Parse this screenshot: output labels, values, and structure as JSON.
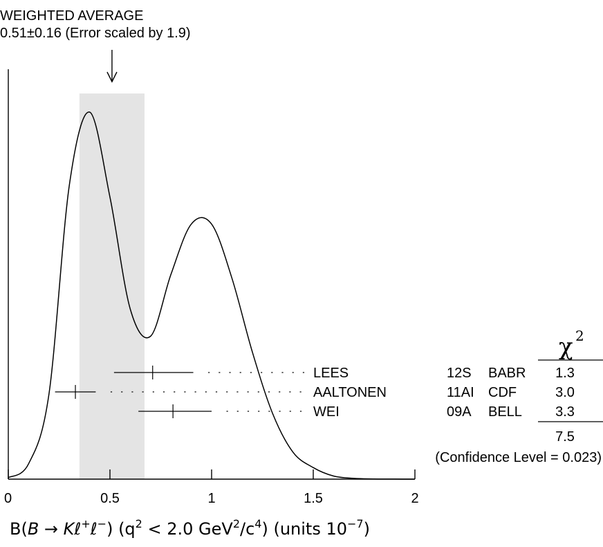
{
  "chart_data": {
    "type": "ideogram",
    "title_line1": "WEIGHTED AVERAGE",
    "title_line2": "0.51±0.16 (Error scaled by 1.9)",
    "weighted_average": {
      "value": 0.51,
      "error": 0.16,
      "scale_factor": 1.9,
      "band": [
        0.35,
        0.67
      ]
    },
    "xlim": [
      0,
      2
    ],
    "ticks": [
      {
        "value": 0,
        "label": "0"
      },
      {
        "value": 0.5,
        "label": "0.5"
      },
      {
        "value": 1,
        "label": "1"
      },
      {
        "value": 1.5,
        "label": "1.5"
      },
      {
        "value": 2,
        "label": "2"
      }
    ],
    "xlabel": {
      "prefix": "B(",
      "B": "B",
      "arrow": " → ",
      "K": "K",
      "ell1": "ℓ",
      "sup_plus": "+",
      "ell2": "ℓ",
      "sup_minus": "−",
      "after_decay": ") (q",
      "sup_q": "2",
      "mid": " < 2.0 GeV",
      "sup_gev": "2",
      "slash_c": "/c",
      "sup_c": "4",
      "units_text": ") (units 10",
      "sup_units": "−7",
      "close": ")"
    },
    "measurements": [
      {
        "author": "LEES",
        "ref": "12S",
        "experiment": "BABR",
        "value": 0.71,
        "err_low": 0.19,
        "err_high": 0.2,
        "chi2": "1.3"
      },
      {
        "author": "AALTONEN",
        "ref": "11AI",
        "experiment": "CDF",
        "value": 0.33,
        "err_low": 0.1,
        "err_high": 0.1,
        "chi2": "3.0"
      },
      {
        "author": "WEI",
        "ref": "09A",
        "experiment": "BELL",
        "value": 0.81,
        "err_low": 0.17,
        "err_high": 0.19,
        "chi2": "3.3"
      }
    ],
    "chi2_header": "χ",
    "chi2_header_sup": "2",
    "chi2_total": "7.5",
    "confidence_level_text": "(Confidence Level = 0.023)",
    "curve": {
      "sample_step": 0.1,
      "x_start": 0,
      "y": [
        0.004,
        0.04,
        0.22,
        0.76,
        0.95,
        0.73,
        0.44,
        0.37,
        0.53,
        0.66,
        0.66,
        0.52,
        0.33,
        0.17,
        0.07,
        0.03,
        0.008,
        0.002,
        0.0005,
        0.0001,
        0.0
      ]
    }
  }
}
